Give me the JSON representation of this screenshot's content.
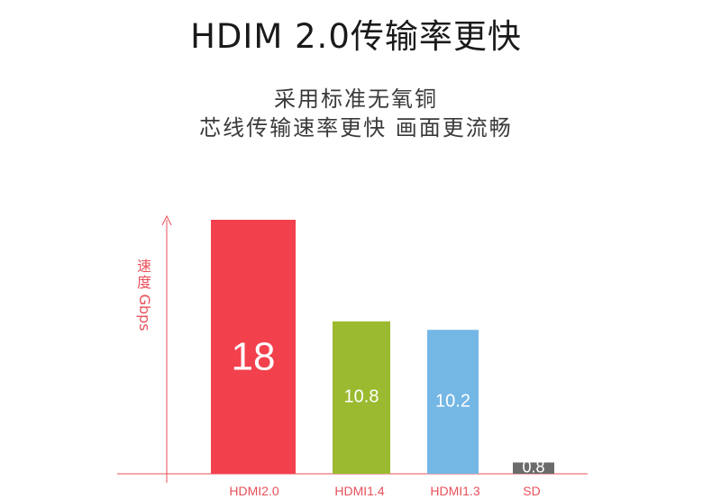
{
  "header": {
    "title": "HDIM 2.0传输率更快",
    "subtitle_line1": "采用标准无氧铜",
    "subtitle_line2": "芯线传输速率更快 画面更流畅"
  },
  "colors": {
    "axis": "#e8505a",
    "HDMI2.0": "#f2404d",
    "HDMI1.4": "#9bba2f",
    "HDMI1.3": "#74b7e5",
    "SD": "#6b6b6b",
    "category_label": "#e8505a",
    "value_label": "#ffffff"
  },
  "chart_data": {
    "type": "bar",
    "title": "",
    "ylabel": "速度Gbps",
    "xlabel": "",
    "categories": [
      "HDMI2.0",
      "HDMI1.4",
      "HDMI1.3",
      "SD"
    ],
    "values": [
      18,
      10.8,
      10.2,
      0.8
    ],
    "value_labels": [
      "18",
      "10.8",
      "10.2",
      "0.8"
    ],
    "ylim": [
      0,
      18.5
    ],
    "grid": false,
    "legend": "none"
  }
}
